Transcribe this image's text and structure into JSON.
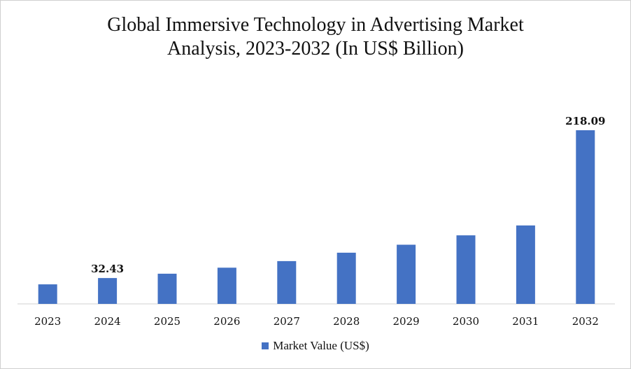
{
  "chart_data": {
    "type": "bar",
    "title_line1": "Global Immersive Technology in Advertising Market",
    "title_line2": "Analysis, 2023-2032 (In US$ Billion)",
    "categories": [
      "2023",
      "2024",
      "2025",
      "2026",
      "2027",
      "2028",
      "2029",
      "2030",
      "2031",
      "2032"
    ],
    "series": [
      {
        "name": "Market Value (US$)",
        "color": "#4472C4",
        "values": [
          24.5,
          32.43,
          37.9,
          45.5,
          53.7,
          64.3,
          74.3,
          86.1,
          98.5,
          218.09
        ]
      }
    ],
    "data_labels": [
      {
        "index": 1,
        "text": "32.43"
      },
      {
        "index": 9,
        "text": "218.09"
      }
    ],
    "legend_position": "bottom",
    "ylim": [
      0,
      260
    ],
    "grid": false
  }
}
